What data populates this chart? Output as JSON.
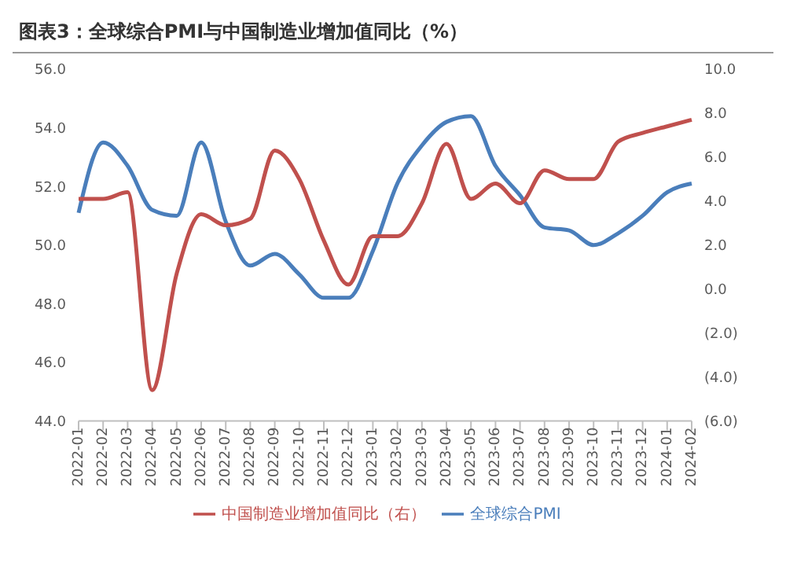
{
  "chart_data": {
    "type": "line",
    "title": "图表3：全球综合PMI与中国制造业增加值同比（%）",
    "categories": [
      "2022-01",
      "2022-02",
      "2022-03",
      "2022-04",
      "2022-05",
      "2022-06",
      "2022-07",
      "2022-08",
      "2022-09",
      "2022-10",
      "2022-11",
      "2022-12",
      "2023-01",
      "2023-02",
      "2023-03",
      "2023-04",
      "2023-05",
      "2023-06",
      "2023-07",
      "2023-08",
      "2023-09",
      "2023-10",
      "2023-11",
      "2023-12",
      "2024-01",
      "2024-02"
    ],
    "series": [
      {
        "name": "全球综合PMI",
        "color": "#4a7ebb",
        "values": [
          51.1,
          53.5,
          52.7,
          51.2,
          51.0,
          53.5,
          50.8,
          49.3,
          49.7,
          49.0,
          48.2,
          48.2,
          49.8,
          52.1,
          53.4,
          54.2,
          54.4,
          52.7,
          51.7,
          50.6,
          50.5,
          50.0,
          50.4,
          51.0,
          51.8,
          52.1
        ]
      },
      {
        "name": "中国制造业增加值同比（右）",
        "color": "#c0504d",
        "axis": "y2",
        "values": [
          4.1,
          4.1,
          4.4,
          -4.6,
          0.7,
          3.4,
          2.9,
          3.2,
          6.3,
          5.0,
          2.2,
          0.2,
          2.4,
          2.4,
          3.9,
          6.6,
          4.1,
          4.8,
          3.9,
          5.4,
          5.0,
          5.0,
          6.7,
          7.1,
          7.4,
          7.7
        ]
      }
    ],
    "ylim": [
      44,
      56
    ],
    "yticks": [
      {
        "value": 44,
        "label": "44.0"
      },
      {
        "value": 46,
        "label": "46.0"
      },
      {
        "value": 48,
        "label": "48.0"
      },
      {
        "value": 50,
        "label": "50.0"
      },
      {
        "value": 52,
        "label": "52.0"
      },
      {
        "value": 54,
        "label": "54.0"
      },
      {
        "value": 56,
        "label": "56.0"
      }
    ],
    "y2lim": [
      -6,
      10
    ],
    "y2ticks": [
      {
        "value": -6,
        "label": "(6.0)"
      },
      {
        "value": -4,
        "label": "(4.0)"
      },
      {
        "value": -2,
        "label": "(2.0)"
      },
      {
        "value": 0,
        "label": "0.0"
      },
      {
        "value": 2,
        "label": "2.0"
      },
      {
        "value": 4,
        "label": "4.0"
      },
      {
        "value": 6,
        "label": "6.0"
      },
      {
        "value": 8,
        "label": "8.0"
      },
      {
        "value": 10,
        "label": "10.0"
      }
    ],
    "grid": false,
    "legend": "bottom",
    "marker": "none",
    "line_style": "solid"
  }
}
